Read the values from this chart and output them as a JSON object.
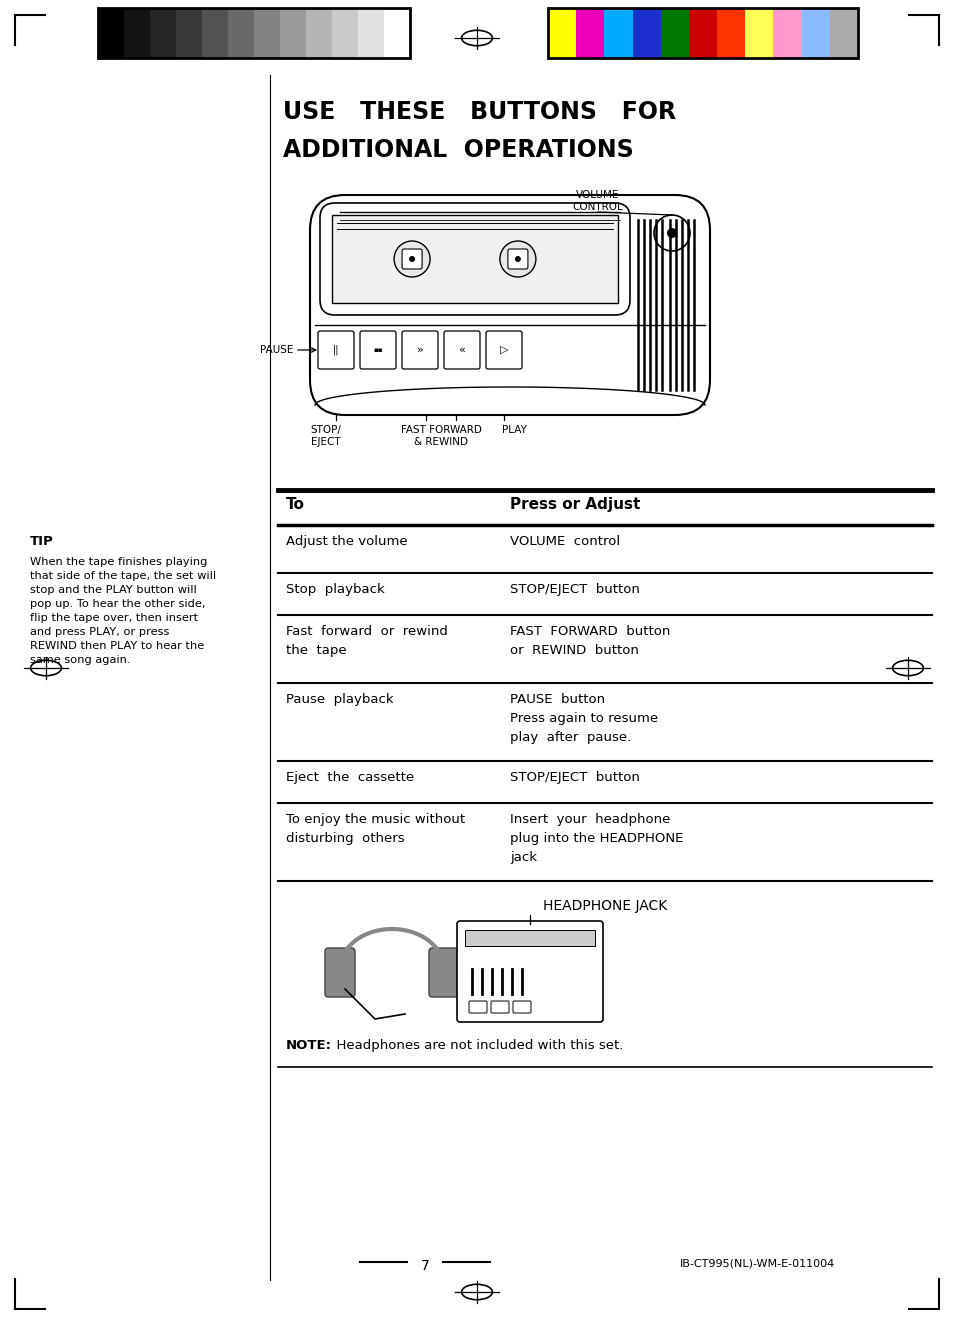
{
  "bg_color": "#ffffff",
  "title_line1": "USE   THESE   BUTTONS   FOR",
  "title_line2": "ADDITIONAL  OPERATIONS",
  "tip_title": "TIP",
  "tip_body": "When the tape finishes playing\nthat side of the tape, the set will\nstop and the PLAY button will\npop up. To hear the other side,\nflip the tape over, then insert\nand press PLAY, or press\nREWIND then PLAY to hear the\nsame song again.",
  "table_header_col1": "To",
  "table_header_col2": "Press or Adjust",
  "table_rows": [
    [
      "Adjust the volume",
      "VOLUME  control"
    ],
    [
      "Stop  playback",
      "STOP/EJECT  button"
    ],
    [
      "Fast  forward  or  rewind\nthe  tape",
      "FAST  FORWARD  button\nor  REWIND  button"
    ],
    [
      "Pause  playback",
      "PAUSE  button\nPress again to resume\nplay  after  pause."
    ],
    [
      "Eject  the  cassette",
      "STOP/EJECT  button"
    ],
    [
      "To enjoy the music without\ndisturbing  others",
      "Insert  your  headphone\nplug into the HEADPHONE\njack"
    ]
  ],
  "note_bold": "NOTE:",
  "note_rest": "  Headphones are not included with this set.",
  "page_num": "7",
  "doc_id": "IB-CT995(NL)-WM-E-011004",
  "volume_control_label": "VOLUME\nCONTROL",
  "pause_label": "PAUSE",
  "stop_eject_label": "STOP/\nEJECT",
  "fast_forward_label": "FAST FORWARD\n& REWIND",
  "play_label": "PLAY",
  "headphone_jack_label": "HEADPHONE JACK",
  "color_swatches_left": [
    "#000000",
    "#141414",
    "#252525",
    "#383838",
    "#525252",
    "#696969",
    "#828282",
    "#9b9b9b",
    "#b5b5b5",
    "#cacaca",
    "#e2e2e2",
    "#ffffff"
  ],
  "color_swatches_right": [
    "#ffff00",
    "#ee00bb",
    "#00aaff",
    "#1a2fcc",
    "#007700",
    "#cc0000",
    "#ff3300",
    "#ffff55",
    "#ff99cc",
    "#88bbff",
    "#aaaaaa"
  ]
}
